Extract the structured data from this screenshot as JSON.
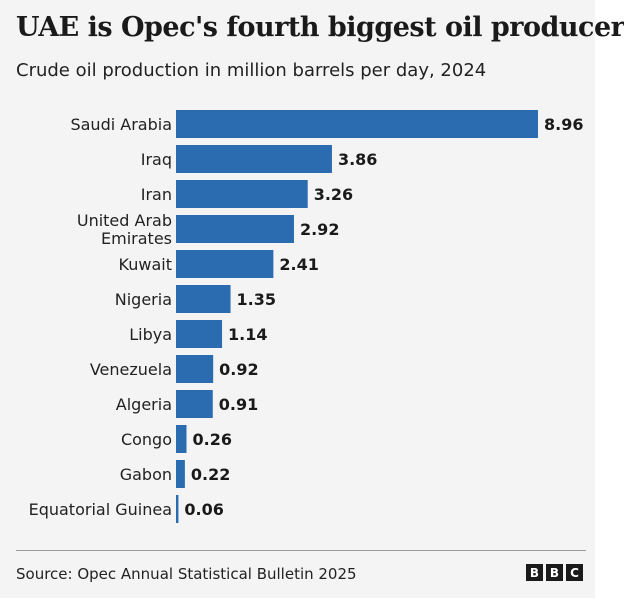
{
  "title": "UAE is Opec's fourth biggest oil producer",
  "subtitle": "Crude oil production in million barrels per day, 2024",
  "source": "Source: Opec Annual Statistical Bulletin 2025",
  "logo": [
    "B",
    "B",
    "C"
  ],
  "colors": {
    "bar": "#2b6cb0",
    "background": "#f4f4f4",
    "text": "#222222"
  },
  "chart_data": {
    "type": "bar",
    "orientation": "horizontal",
    "title": "UAE is Opec's fourth biggest oil producer",
    "xlabel": "Crude oil production in million barrels per day, 2024",
    "ylabel": "",
    "xlim": [
      0,
      8.96
    ],
    "categories": [
      "Saudi Arabia",
      "Iraq",
      "Iran",
      "United Arab Emirates",
      "Kuwait",
      "Nigeria",
      "Libya",
      "Venezuela",
      "Algeria",
      "Congo",
      "Gabon",
      "Equatorial Guinea"
    ],
    "category_label_lines": [
      [
        "Saudi Arabia"
      ],
      [
        "Iraq"
      ],
      [
        "Iran"
      ],
      [
        "United Arab",
        "Emirates"
      ],
      [
        "Kuwait"
      ],
      [
        "Nigeria"
      ],
      [
        "Libya"
      ],
      [
        "Venezuela"
      ],
      [
        "Algeria"
      ],
      [
        "Congo"
      ],
      [
        "Gabon"
      ],
      [
        "Equatorial Guinea"
      ]
    ],
    "values": [
      8.96,
      3.86,
      3.26,
      2.92,
      2.41,
      1.35,
      1.14,
      0.92,
      0.91,
      0.26,
      0.22,
      0.06
    ],
    "value_labels": [
      "8.96",
      "3.86",
      "3.26",
      "2.92",
      "2.41",
      "1.35",
      "1.14",
      "0.92",
      "0.91",
      "0.26",
      "0.22",
      "0.06"
    ]
  }
}
